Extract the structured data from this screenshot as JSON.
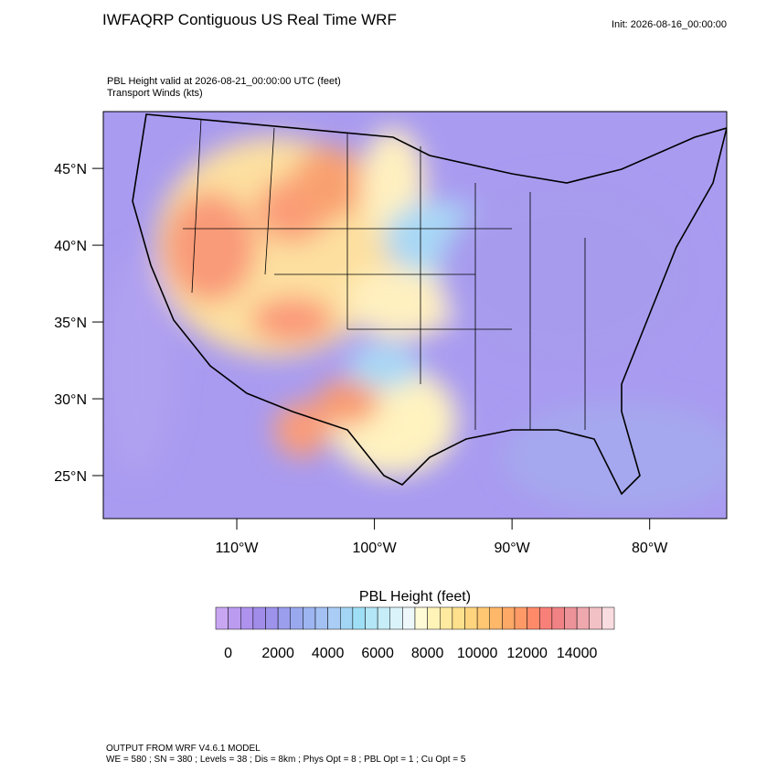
{
  "header": {
    "title": "IWFAQRP Contiguous US Real Time WRF",
    "init": "Init: 2026-08-16_00:00:00",
    "field_line": "PBL Height valid at 2026-08-21_00:00:00 UTC   (feet)",
    "wind_line": "Transport Winds   (kts)"
  },
  "map": {
    "lonlim": [
      -119.7,
      -74.4
    ],
    "latlim": [
      22.2,
      48.7
    ],
    "lat_ticks": [
      {
        "value": 25,
        "label": "25°N"
      },
      {
        "value": 30,
        "label": "30°N"
      },
      {
        "value": 35,
        "label": "35°N"
      },
      {
        "value": 40,
        "label": "40°N"
      },
      {
        "value": 45,
        "label": "45°N"
      }
    ],
    "lon_ticks": [
      {
        "value": -110,
        "label": "110°W"
      },
      {
        "value": -100,
        "label": "100°W"
      },
      {
        "value": -90,
        "label": "90°W"
      },
      {
        "value": -80,
        "label": "80°W"
      }
    ]
  },
  "colorbar": {
    "title": "PBL Height  (feet)",
    "lim": [
      -500,
      15500
    ],
    "colors": [
      "#c9a6f2",
      "#bb9bf0",
      "#ae92ee",
      "#a28cea",
      "#9d93ea",
      "#9a9eec",
      "#9aa9ee",
      "#9db5f0",
      "#a3c1f2",
      "#a9cdf4",
      "#a3d5f5",
      "#9edff6",
      "#b3e6f7",
      "#c6edf8",
      "#daf3fa",
      "#eef8fb",
      "#fffbd6",
      "#fff3b8",
      "#ffeaa0",
      "#ffe08c",
      "#ffd47e",
      "#ffc772",
      "#ffb86a",
      "#ffa966",
      "#ff9a66",
      "#ff8a6a",
      "#f98078",
      "#f08286",
      "#ec9399",
      "#eea8ae",
      "#f2c1c6",
      "#f8dcdf"
    ],
    "ticks": [
      0,
      2000,
      4000,
      6000,
      8000,
      10000,
      12000,
      14000
    ]
  },
  "footer": {
    "line1": "OUTPUT FROM WRF V4.6.1 MODEL",
    "line2": "WE = 580 ; SN = 380 ; Levels = 38 ; Dis = 8km ; Phys Opt = 8 ; PBL Opt = 1 ; Cu Opt = 5"
  }
}
